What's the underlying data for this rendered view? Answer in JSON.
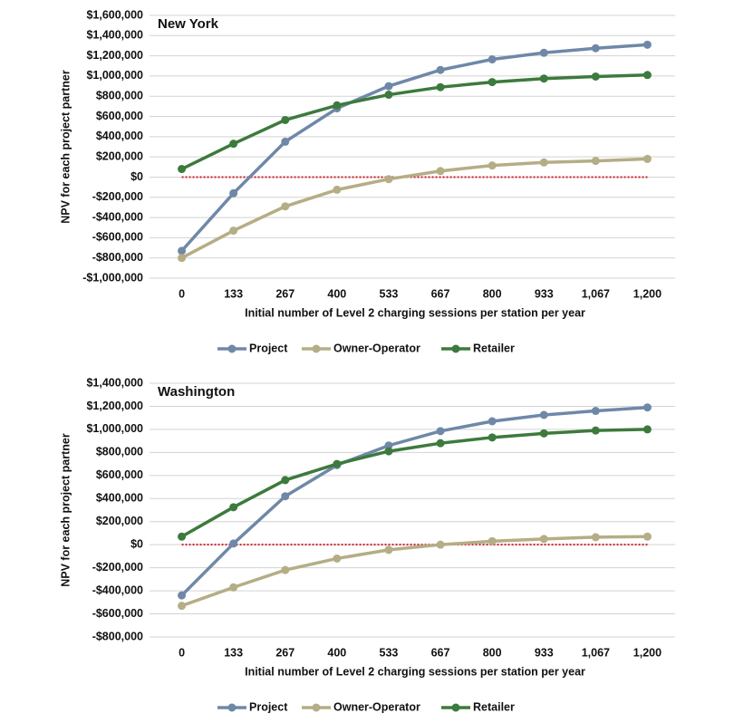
{
  "chart_data": [
    {
      "type": "line",
      "title": "New York",
      "x_label": "Initial number of Level 2 charging sessions per station per year",
      "y_label": "NPV for each project partner",
      "categories": [
        "0",
        "133",
        "267",
        "400",
        "533",
        "667",
        "800",
        "933",
        "1,067",
        "1,200"
      ],
      "series": [
        {
          "name": "Project",
          "color": "#6f88a8",
          "values": [
            -730000,
            -160000,
            350000,
            680000,
            900000,
            1060000,
            1165000,
            1230000,
            1275000,
            1310000
          ]
        },
        {
          "name": "Owner-Operator",
          "color": "#b5ad85",
          "values": [
            -800000,
            -530000,
            -290000,
            -125000,
            -20000,
            60000,
            115000,
            145000,
            160000,
            180000
          ]
        },
        {
          "name": "Retailer",
          "color": "#3d7a3d",
          "values": [
            80000,
            330000,
            565000,
            710000,
            815000,
            890000,
            940000,
            975000,
            995000,
            1010000
          ]
        }
      ],
      "ylim": [
        -1000000,
        1600000
      ],
      "yticks": [
        {
          "value": -1000000,
          "label": "-$1,000,000"
        },
        {
          "value": -800000,
          "label": "-$800,000"
        },
        {
          "value": -600000,
          "label": "-$600,000"
        },
        {
          "value": -400000,
          "label": "-$400,000"
        },
        {
          "value": -200000,
          "label": "-$200,000"
        },
        {
          "value": 0,
          "label": "$0"
        },
        {
          "value": 200000,
          "label": "$200,000"
        },
        {
          "value": 400000,
          "label": "$400,000"
        },
        {
          "value": 600000,
          "label": "$600,000"
        },
        {
          "value": 800000,
          "label": "$800,000"
        },
        {
          "value": 1000000,
          "label": "$1,000,000"
        },
        {
          "value": 1200000,
          "label": "$1,200,000"
        },
        {
          "value": 1400000,
          "label": "$1,400,000"
        },
        {
          "value": 1600000,
          "label": "$1,600,000"
        }
      ],
      "grid": true,
      "reference_line": {
        "value": 0,
        "color": "#d0202a"
      },
      "legend": "bottom"
    },
    {
      "type": "line",
      "title": "Washington",
      "x_label": "Initial number of Level 2 charging sessions per station per year",
      "y_label": "NPV for each project partner",
      "categories": [
        "0",
        "133",
        "267",
        "400",
        "533",
        "667",
        "800",
        "933",
        "1,067",
        "1,200"
      ],
      "series": [
        {
          "name": "Project",
          "color": "#6f88a8",
          "values": [
            -440000,
            10000,
            420000,
            690000,
            860000,
            985000,
            1070000,
            1125000,
            1160000,
            1190000
          ]
        },
        {
          "name": "Owner-Operator",
          "color": "#b5ad85",
          "values": [
            -530000,
            -370000,
            -220000,
            -120000,
            -45000,
            0,
            30000,
            50000,
            65000,
            70000
          ]
        },
        {
          "name": "Retailer",
          "color": "#3d7a3d",
          "values": [
            70000,
            325000,
            560000,
            700000,
            810000,
            880000,
            930000,
            965000,
            990000,
            1000000
          ]
        }
      ],
      "ylim": [
        -800000,
        1400000
      ],
      "yticks": [
        {
          "value": -800000,
          "label": "-$800,000"
        },
        {
          "value": -600000,
          "label": "-$600,000"
        },
        {
          "value": -400000,
          "label": "-$400,000"
        },
        {
          "value": -200000,
          "label": "-$200,000"
        },
        {
          "value": 0,
          "label": "$0"
        },
        {
          "value": 200000,
          "label": "$200,000"
        },
        {
          "value": 400000,
          "label": "$400,000"
        },
        {
          "value": 600000,
          "label": "$600,000"
        },
        {
          "value": 800000,
          "label": "$800,000"
        },
        {
          "value": 1000000,
          "label": "$1,000,000"
        },
        {
          "value": 1200000,
          "label": "$1,200,000"
        },
        {
          "value": 1400000,
          "label": "$1,400,000"
        }
      ],
      "grid": true,
      "reference_line": {
        "value": 0,
        "color": "#d0202a"
      },
      "legend": "bottom"
    }
  ]
}
